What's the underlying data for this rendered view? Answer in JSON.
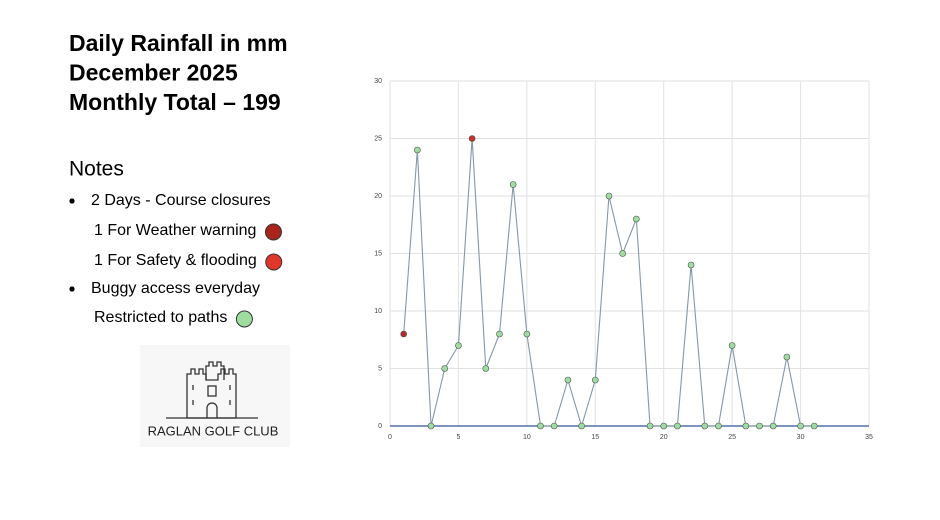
{
  "title_lines": [
    "Daily Rainfall in mm",
    "December 2025",
    "Monthly Total – 199"
  ],
  "notes": {
    "heading": "Notes",
    "items": [
      {
        "text": "2 Days - Course closures",
        "bullet": true
      },
      {
        "text": "1 For Weather warning",
        "color": "#a8241d"
      },
      {
        "text": "1 For Safety & flooding",
        "color": "#e3362b"
      },
      {
        "text": "Buggy access everyday",
        "bullet": true
      },
      {
        "text": "Restricted to paths",
        "color": "#9fdca0"
      }
    ]
  },
  "logo": {
    "text": "RAGLAN GOLF CLUB"
  },
  "chart_data": {
    "type": "line",
    "x": [
      1,
      2,
      3,
      4,
      5,
      6,
      7,
      8,
      9,
      10,
      11,
      12,
      13,
      14,
      15,
      16,
      17,
      18,
      19,
      20,
      21,
      22,
      23,
      24,
      25,
      26,
      27,
      28,
      29,
      30,
      31
    ],
    "series": [
      {
        "color": "#8497ab",
        "values": [
          8,
          24,
          0,
          5,
          7,
          25,
          5,
          8,
          21,
          8,
          0,
          0,
          4,
          0,
          4,
          20,
          15,
          18,
          0,
          0,
          0,
          14,
          0,
          0,
          7,
          0,
          0,
          0,
          6,
          0,
          0
        ],
        "marker_colors": [
          "#b52a2a",
          "#9fdca0",
          "#9fdca0",
          "#9fdca0",
          "#9fdca0",
          "#c8302a",
          "#9fdca0",
          "#9fdca0",
          "#9fdca0",
          "#9fdca0",
          "#9fdca0",
          "#9fdca0",
          "#9fdca0",
          "#9fdca0",
          "#9fdca0",
          "#9fdca0",
          "#9fdca0",
          "#9fdca0",
          "#9fdca0",
          "#9fdca0",
          "#9fdca0",
          "#9fdca0",
          "#9fdca0",
          "#9fdca0",
          "#9fdca0",
          "#9fdca0",
          "#9fdca0",
          "#9fdca0",
          "#9fdca0",
          "#9fdca0",
          "#9fdca0"
        ]
      }
    ],
    "xlim": [
      0,
      35
    ],
    "xticks": [
      0,
      5,
      10,
      15,
      20,
      25,
      30,
      35
    ],
    "ylim": [
      0,
      30
    ],
    "yticks": [
      0,
      5,
      10,
      15,
      20,
      25,
      30
    ],
    "grid": true
  }
}
